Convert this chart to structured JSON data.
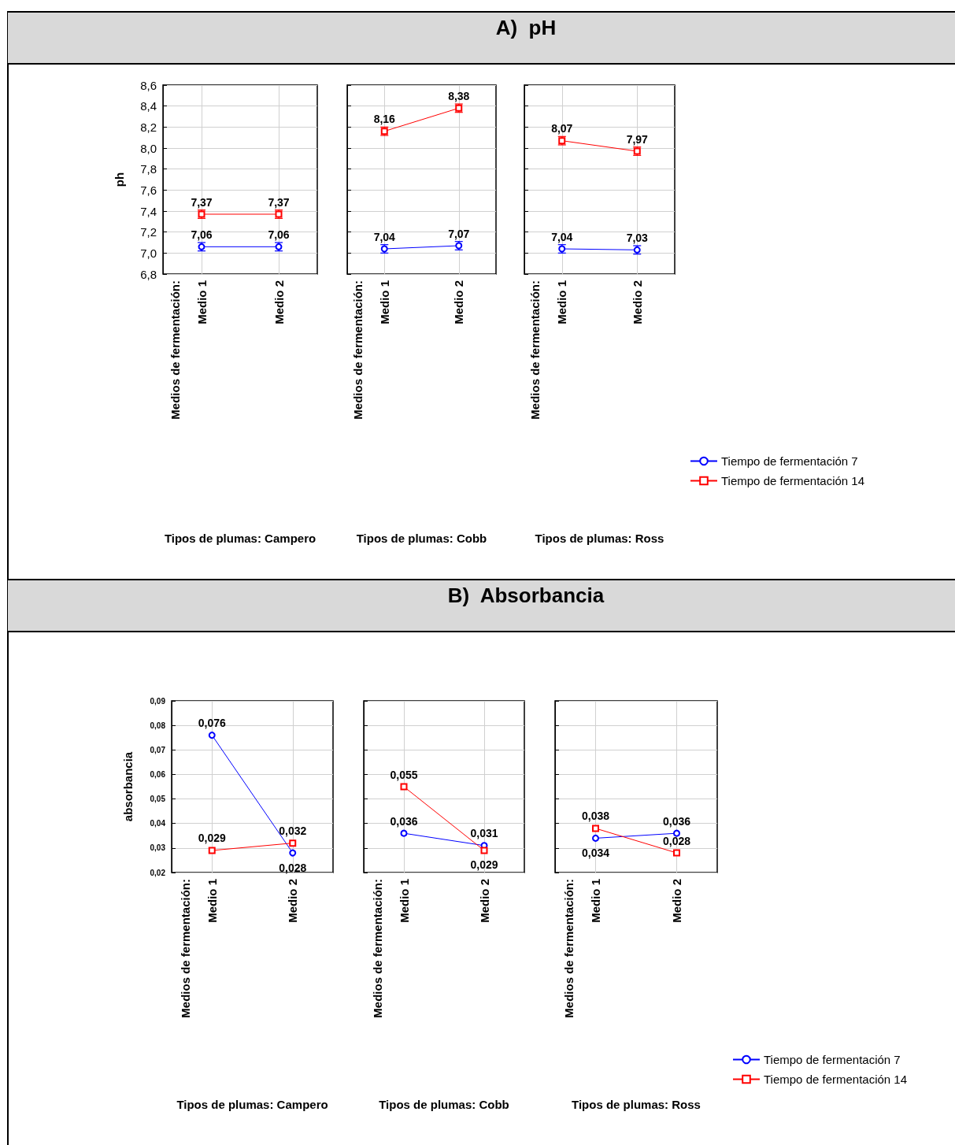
{
  "chart_data": [
    {
      "type": "line",
      "ylabel": "ph",
      "annotations": [
        "Medios de fermentación:",
        "Tipos de plumas: Campero"
      ],
      "categories": [
        "Medio 1",
        "Medio 2"
      ],
      "ylim": [
        6.8,
        8.6
      ],
      "yticks": [
        {
          "value": 6.8,
          "label": "6,8"
        },
        {
          "value": 7.0,
          "label": "7,0"
        },
        {
          "value": 7.2,
          "label": "7,2"
        },
        {
          "value": 7.4,
          "label": "7,4"
        },
        {
          "value": 7.6,
          "label": "7,6"
        },
        {
          "value": 7.8,
          "label": "7,8"
        },
        {
          "value": 8.0,
          "label": "8,0"
        },
        {
          "value": 8.2,
          "label": "8,2"
        },
        {
          "value": 8.4,
          "label": "8,4"
        },
        {
          "value": 8.6,
          "label": "8,6"
        }
      ],
      "grid": true,
      "series": [
        {
          "color": "#0000ff",
          "marker": "circle",
          "values": [
            7.06,
            7.06
          ],
          "errors": [
            0.04,
            0.04
          ],
          "value_labels": [
            "7,06",
            "7,06"
          ]
        },
        {
          "color": "#ff0000",
          "marker": "square",
          "values": [
            7.37,
            7.37
          ],
          "errors": [
            0.04,
            0.04
          ],
          "value_labels": [
            "7,37",
            "7,37"
          ]
        }
      ]
    },
    {
      "type": "line",
      "annotations": [
        "Medios de fermentación:",
        "Tipos de plumas: Cobb"
      ],
      "categories": [
        "Medio 1",
        "Medio 2"
      ],
      "ylim": [
        6.8,
        8.6
      ],
      "yticks": [
        {
          "value": 6.8,
          "label": null
        },
        {
          "value": 7.0,
          "label": null
        },
        {
          "value": 7.2,
          "label": null
        },
        {
          "value": 7.4,
          "label": null
        },
        {
          "value": 7.6,
          "label": null
        },
        {
          "value": 7.8,
          "label": null
        },
        {
          "value": 8.0,
          "label": null
        },
        {
          "value": 8.2,
          "label": null
        },
        {
          "value": 8.4,
          "label": null
        },
        {
          "value": 8.6,
          "label": null
        }
      ],
      "grid": true,
      "tick_labels": "x",
      "series": [
        {
          "color": "#0000ff",
          "marker": "circle",
          "values": [
            7.04,
            7.07
          ],
          "errors": [
            0.04,
            0.04
          ],
          "value_labels": [
            "7,04",
            "7,07"
          ]
        },
        {
          "color": "#ff0000",
          "marker": "square",
          "values": [
            8.16,
            8.38
          ],
          "errors": [
            0.04,
            0.04
          ],
          "value_labels": [
            "8,16",
            "8,38"
          ]
        }
      ]
    },
    {
      "type": "line",
      "annotations": [
        "Medios de fermentación:",
        "Tipos de plumas: Ross"
      ],
      "categories": [
        "Medio 1",
        "Medio 2"
      ],
      "ylim": [
        6.8,
        8.6
      ],
      "yticks": [
        {
          "value": 6.8,
          "label": null
        },
        {
          "value": 7.0,
          "label": null
        },
        {
          "value": 7.2,
          "label": null
        },
        {
          "value": 7.4,
          "label": null
        },
        {
          "value": 7.6,
          "label": null
        },
        {
          "value": 7.8,
          "label": null
        },
        {
          "value": 8.0,
          "label": null
        },
        {
          "value": 8.2,
          "label": null
        },
        {
          "value": 8.4,
          "label": null
        },
        {
          "value": 8.6,
          "label": null
        }
      ],
      "grid": true,
      "tick_labels": "x",
      "legend": "bottom right",
      "title": "A)  pH",
      "series": [
        {
          "name": "Tiempo de fermentación 7",
          "color": "#0000ff",
          "marker": "circle",
          "values": [
            7.04,
            7.03
          ],
          "errors": [
            0.04,
            0.04
          ],
          "value_labels": [
            "7,04",
            "7,03"
          ]
        },
        {
          "name": "Tiempo de fermentación 14",
          "color": "#ff0000",
          "marker": "square",
          "values": [
            8.07,
            7.97
          ],
          "errors": [
            0.04,
            0.04
          ],
          "value_labels": [
            "8,07",
            "7,97"
          ]
        }
      ]
    },
    {
      "type": "line",
      "ylabel": "absorbancia",
      "annotations": [
        "Medios de fermentación:",
        "Tipos de plumas: Campero"
      ],
      "categories": [
        "Medio 1",
        "Medio 2"
      ],
      "ylim": [
        0.02,
        0.09
      ],
      "yticks": [
        {
          "value": 0.02,
          "label": "0,02"
        },
        {
          "value": 0.03,
          "label": "0,03"
        },
        {
          "value": 0.04,
          "label": "0,04"
        },
        {
          "value": 0.05,
          "label": "0,05"
        },
        {
          "value": 0.06,
          "label": "0,06"
        },
        {
          "value": 0.07,
          "label": "0,07"
        },
        {
          "value": 0.08,
          "label": "0,08"
        },
        {
          "value": 0.09,
          "label": "0,09"
        }
      ],
      "grid": true,
      "series": [
        {
          "color": "#0000ff",
          "marker": "circle",
          "values": [
            0.076,
            0.028
          ],
          "value_labels": [
            "0,076",
            "0,028"
          ]
        },
        {
          "color": "#ff0000",
          "marker": "square",
          "values": [
            0.029,
            0.032
          ],
          "value_labels": [
            "0,029",
            "0,032"
          ]
        }
      ]
    },
    {
      "type": "line",
      "annotations": [
        "Medios de fermentación:",
        "Tipos de plumas: Cobb"
      ],
      "categories": [
        "Medio 1",
        "Medio 2"
      ],
      "ylim": [
        0.02,
        0.09
      ],
      "yticks": [
        {
          "value": 0.02,
          "label": null
        },
        {
          "value": 0.03,
          "label": null
        },
        {
          "value": 0.04,
          "label": null
        },
        {
          "value": 0.05,
          "label": null
        },
        {
          "value": 0.06,
          "label": null
        },
        {
          "value": 0.07,
          "label": null
        },
        {
          "value": 0.08,
          "label": null
        },
        {
          "value": 0.09,
          "label": null
        }
      ],
      "grid": true,
      "tick_labels": "x",
      "series": [
        {
          "color": "#0000ff",
          "marker": "circle",
          "values": [
            0.036,
            0.031
          ],
          "value_labels": [
            "0,036",
            "0,031"
          ]
        },
        {
          "color": "#ff0000",
          "marker": "square",
          "values": [
            0.055,
            0.029
          ],
          "value_labels": [
            "0,055",
            "0,029"
          ]
        }
      ]
    },
    {
      "type": "line",
      "annotations": [
        "Medios de fermentación:",
        "Tipos de plumas: Ross"
      ],
      "categories": [
        "Medio 1",
        "Medio 2"
      ],
      "ylim": [
        0.02,
        0.09
      ],
      "yticks": [
        {
          "value": 0.02,
          "label": null
        },
        {
          "value": 0.03,
          "label": null
        },
        {
          "value": 0.04,
          "label": null
        },
        {
          "value": 0.05,
          "label": null
        },
        {
          "value": 0.06,
          "label": null
        },
        {
          "value": 0.07,
          "label": null
        },
        {
          "value": 0.08,
          "label": null
        },
        {
          "value": 0.09,
          "label": null
        }
      ],
      "grid": true,
      "tick_labels": "x",
      "legend": "bottom right",
      "title": "B)  Absorbancia",
      "series": [
        {
          "name": "Tiempo de fermentación 7",
          "color": "#0000ff",
          "marker": "circle",
          "values": [
            0.034,
            0.036
          ],
          "value_labels": [
            "0,034",
            "0,036"
          ]
        },
        {
          "name": "Tiempo de fermentación 14",
          "color": "#ff0000",
          "marker": "square",
          "values": [
            0.038,
            0.028
          ],
          "value_labels": [
            "0,038",
            "0,028"
          ]
        }
      ]
    }
  ]
}
